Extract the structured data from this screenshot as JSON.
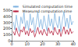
{
  "chart_data": {
    "type": "line",
    "x": [
      1,
      2,
      3,
      4,
      5,
      6,
      7,
      8,
      9,
      10,
      11,
      12,
      13,
      14,
      15,
      16,
      17,
      18,
      19,
      20,
      21,
      22,
      23,
      24,
      25,
      26,
      27,
      28,
      29,
      30,
      31,
      32,
      33,
      34,
      35,
      36,
      37,
      38,
      39,
      40
    ],
    "series": [
      {
        "name": "Simulated computation time",
        "color": "#7fb3e0",
        "line_style": "solid",
        "marker": "none",
        "values": [
          310,
          180,
          420,
          250,
          150,
          390,
          280,
          460,
          200,
          330,
          170,
          440,
          260,
          380,
          140,
          300,
          470,
          220,
          350,
          190,
          410,
          270,
          160,
          430,
          240,
          360,
          180,
          450,
          290,
          210,
          400,
          150,
          340,
          480,
          230,
          370,
          200,
          420,
          260,
          320
        ]
      },
      {
        "name": "Measured computation time",
        "color": "#b5223f",
        "line_style": "solid",
        "marker": "none",
        "values": [
          150,
          90,
          210,
          120,
          70,
          180,
          140,
          230,
          100,
          160,
          80,
          200,
          130,
          170,
          60,
          140,
          220,
          110,
          170,
          90,
          190,
          130,
          80,
          210,
          120,
          160,
          90,
          220,
          140,
          100,
          190,
          70,
          150,
          230,
          110,
          180,
          100,
          200,
          120,
          150
        ]
      }
    ],
    "xlim": [
      0,
      40
    ],
    "xticks": [
      0,
      10,
      20,
      30,
      40
    ],
    "ylim": [
      0,
      500
    ],
    "yticks": [
      0,
      100,
      200,
      300,
      400,
      500
    ],
    "grid": false,
    "legend": "upper right"
  }
}
